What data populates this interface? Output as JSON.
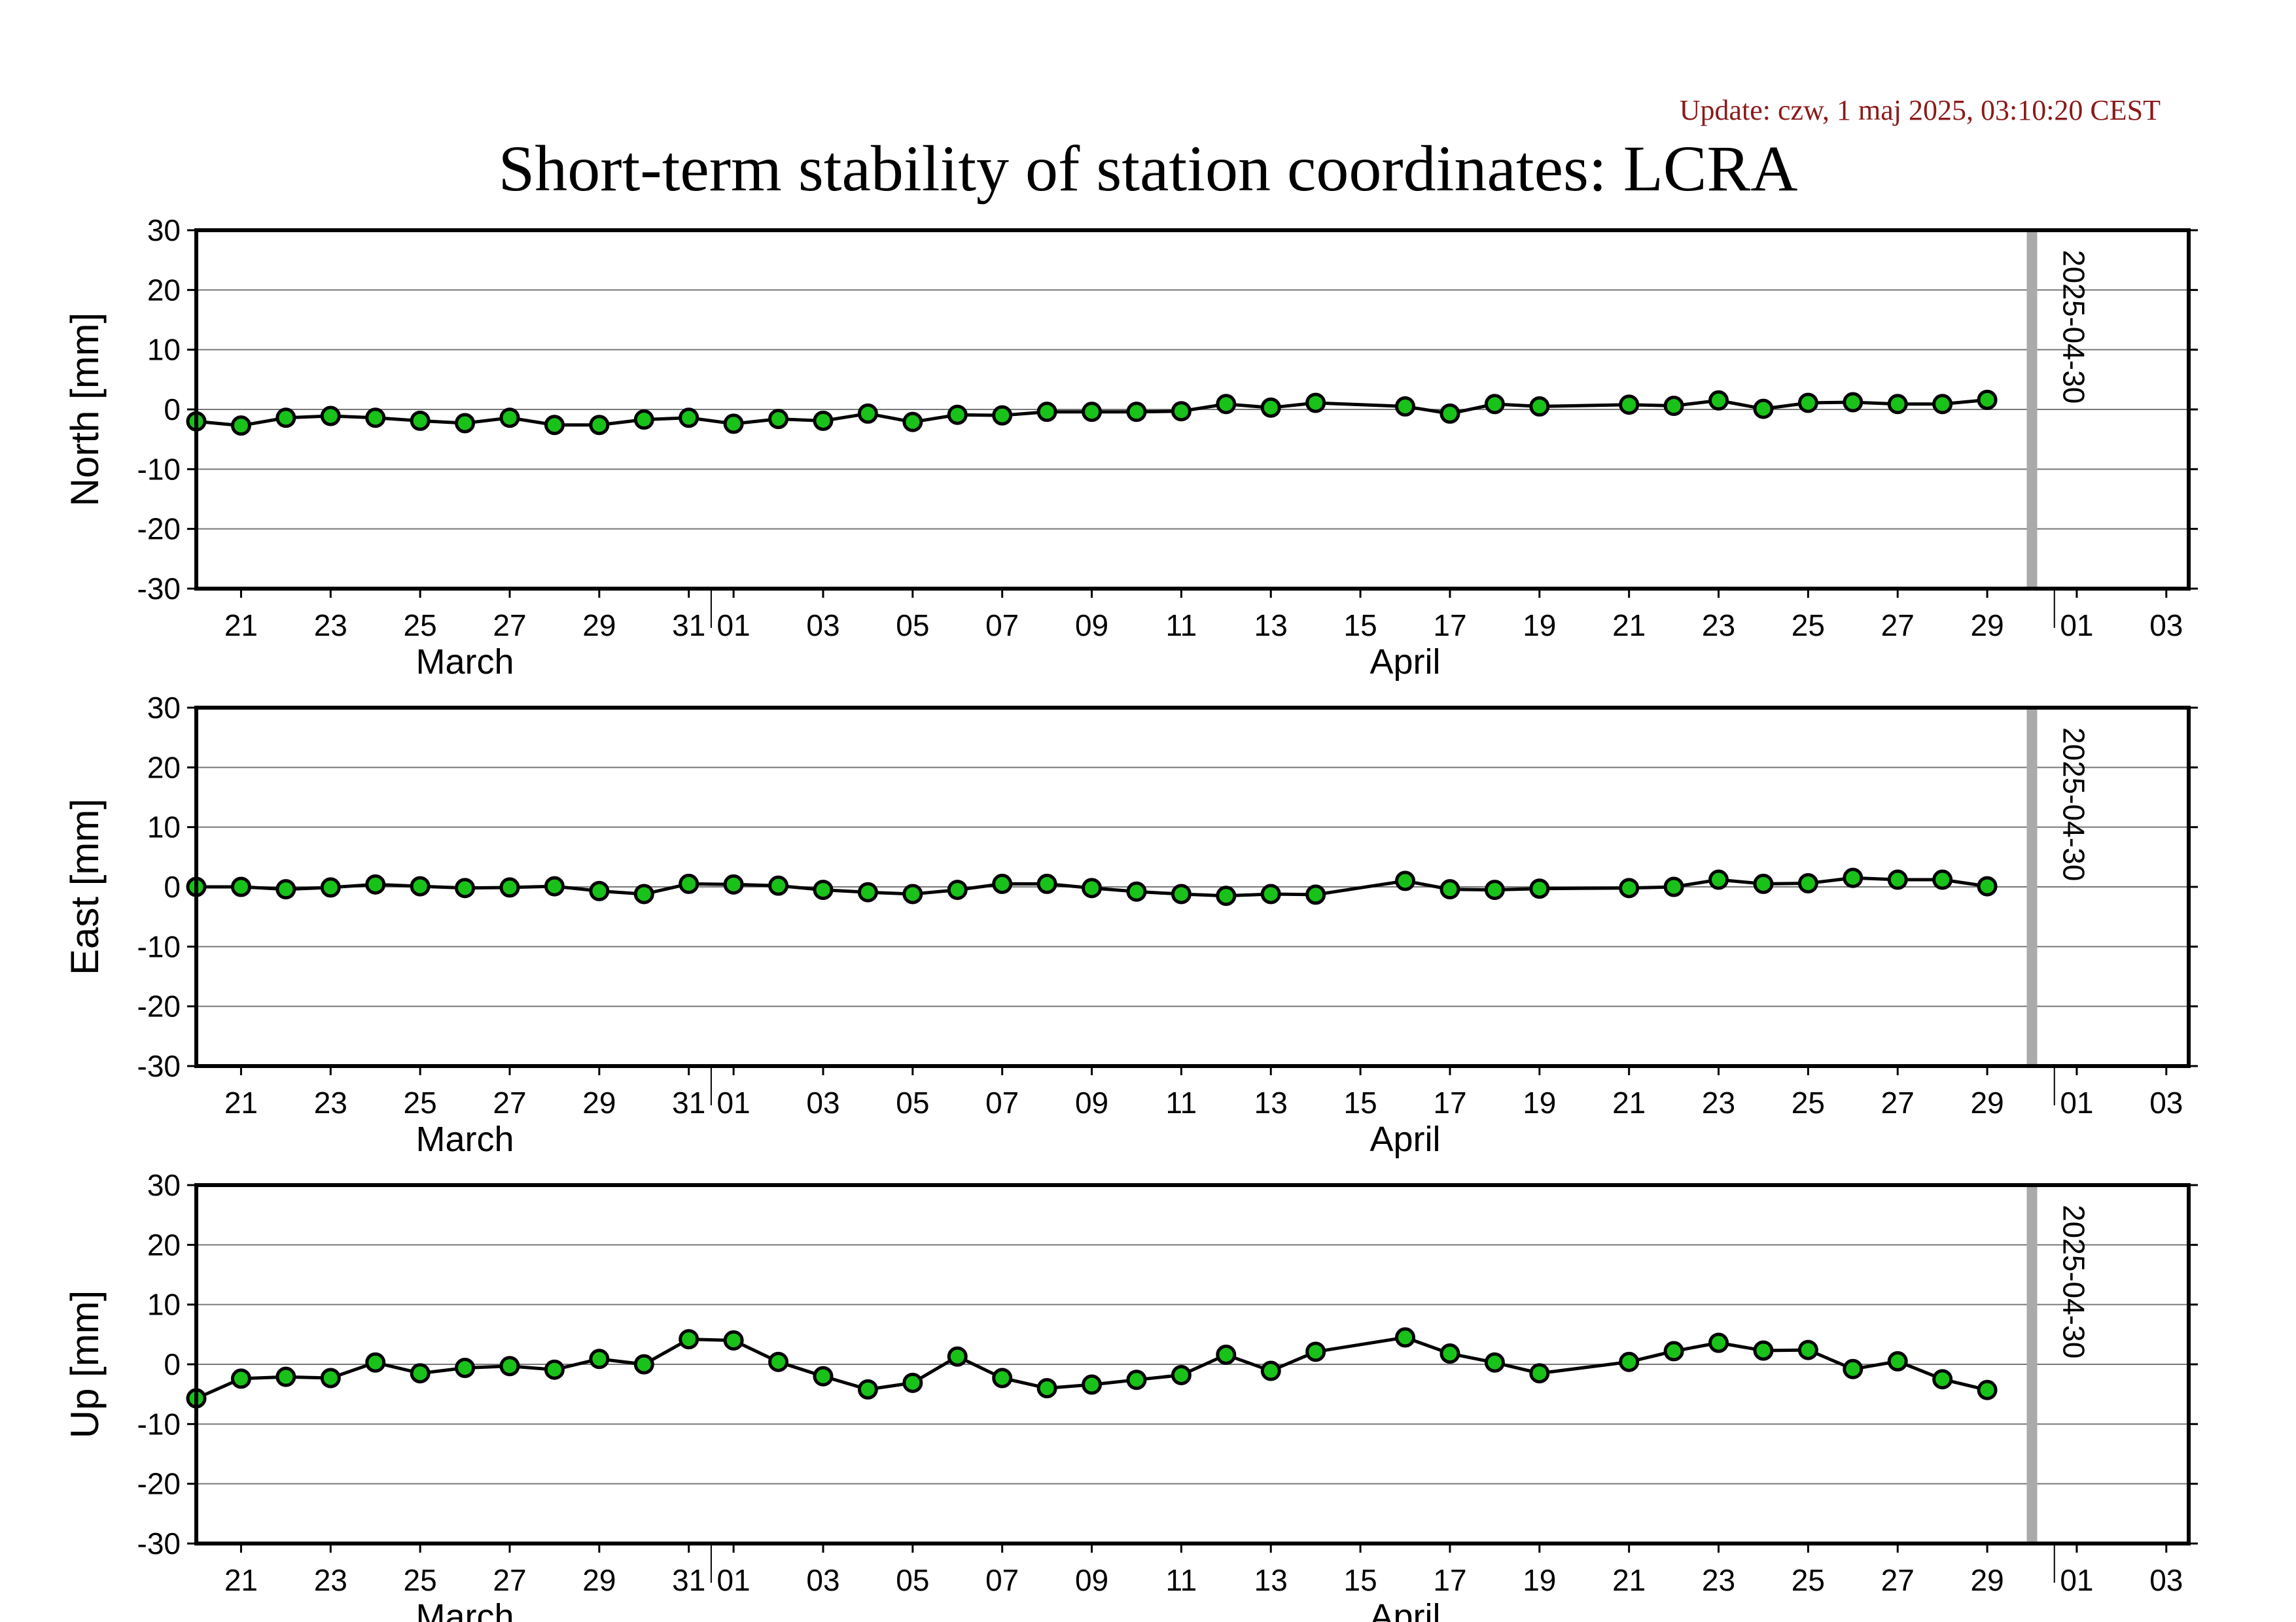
{
  "update_text": "Update: czw, 1 maj 2025, 03:10:20 CEST",
  "title": "Short-term stability of station coordinates: LCRA",
  "colors": {
    "marker_fill": "#19c219",
    "line": "#000000",
    "grid": "#777777",
    "marker_line": "#aaaaaa",
    "update_text": "#8b1a1a"
  },
  "chart_data": [
    {
      "type": "scatter",
      "ylabel": "North [mm]",
      "ylim": [
        -30,
        30
      ],
      "yticks": [
        30,
        20,
        10,
        0,
        -10,
        -20,
        -30
      ],
      "grid": true,
      "marker_label": "2025-04-30",
      "marker_date": "2025-04-30",
      "x_day_ticks": [
        {
          "label": "21",
          "date": "2025-03-21"
        },
        {
          "label": "23",
          "date": "2025-03-23"
        },
        {
          "label": "25",
          "date": "2025-03-25"
        },
        {
          "label": "27",
          "date": "2025-03-27"
        },
        {
          "label": "29",
          "date": "2025-03-29"
        },
        {
          "label": "31",
          "date": "2025-03-31"
        },
        {
          "label": "01",
          "date": "2025-04-01"
        },
        {
          "label": "03",
          "date": "2025-04-03"
        },
        {
          "label": "05",
          "date": "2025-04-05"
        },
        {
          "label": "07",
          "date": "2025-04-07"
        },
        {
          "label": "09",
          "date": "2025-04-09"
        },
        {
          "label": "11",
          "date": "2025-04-11"
        },
        {
          "label": "13",
          "date": "2025-04-13"
        },
        {
          "label": "15",
          "date": "2025-04-15"
        },
        {
          "label": "17",
          "date": "2025-04-17"
        },
        {
          "label": "19",
          "date": "2025-04-19"
        },
        {
          "label": "21",
          "date": "2025-04-21"
        },
        {
          "label": "23",
          "date": "2025-04-23"
        },
        {
          "label": "25",
          "date": "2025-04-25"
        },
        {
          "label": "27",
          "date": "2025-04-27"
        },
        {
          "label": "29",
          "date": "2025-04-29"
        },
        {
          "label": "01",
          "date": "2025-05-01"
        },
        {
          "label": "03",
          "date": "2025-05-03"
        }
      ],
      "x_month_labels": [
        {
          "label": "March",
          "date": "2025-03-26"
        },
        {
          "label": "April",
          "date": "2025-04-16"
        }
      ],
      "series": [
        {
          "x": [
            "2025-03-20",
            "2025-03-21",
            "2025-03-22",
            "2025-03-23",
            "2025-03-24",
            "2025-03-25",
            "2025-03-26",
            "2025-03-27",
            "2025-03-28",
            "2025-03-29",
            "2025-03-30",
            "2025-03-31",
            "2025-04-01",
            "2025-04-02",
            "2025-04-03",
            "2025-04-04",
            "2025-04-05",
            "2025-04-06",
            "2025-04-07",
            "2025-04-08",
            "2025-04-09",
            "2025-04-10",
            "2025-04-11",
            "2025-04-12",
            "2025-04-13",
            "2025-04-14",
            "2025-04-16",
            "2025-04-17",
            "2025-04-18",
            "2025-04-19",
            "2025-04-21",
            "2025-04-22",
            "2025-04-23",
            "2025-04-24",
            "2025-04-25",
            "2025-04-26",
            "2025-04-27",
            "2025-04-28",
            "2025-04-29"
          ],
          "y": [
            -2.0,
            -2.7,
            -1.4,
            -1.1,
            -1.4,
            -1.9,
            -2.3,
            -1.4,
            -2.6,
            -2.6,
            -1.7,
            -1.4,
            -2.4,
            -1.6,
            -1.9,
            -0.7,
            -2.1,
            -0.9,
            -1.0,
            -0.4,
            -0.4,
            -0.4,
            -0.3,
            0.9,
            0.3,
            1.1,
            0.5,
            -0.7,
            0.9,
            0.5,
            0.8,
            0.6,
            1.5,
            0.1,
            1.1,
            1.2,
            0.9,
            0.9,
            1.6
          ]
        }
      ]
    },
    {
      "type": "scatter",
      "ylabel": "East [mm]",
      "ylim": [
        -30,
        30
      ],
      "yticks": [
        30,
        20,
        10,
        0,
        -10,
        -20,
        -30
      ],
      "grid": true,
      "marker_label": "2025-04-30",
      "marker_date": "2025-04-30",
      "x_day_ticks": [
        {
          "label": "21",
          "date": "2025-03-21"
        },
        {
          "label": "23",
          "date": "2025-03-23"
        },
        {
          "label": "25",
          "date": "2025-03-25"
        },
        {
          "label": "27",
          "date": "2025-03-27"
        },
        {
          "label": "29",
          "date": "2025-03-29"
        },
        {
          "label": "31",
          "date": "2025-03-31"
        },
        {
          "label": "01",
          "date": "2025-04-01"
        },
        {
          "label": "03",
          "date": "2025-04-03"
        },
        {
          "label": "05",
          "date": "2025-04-05"
        },
        {
          "label": "07",
          "date": "2025-04-07"
        },
        {
          "label": "09",
          "date": "2025-04-09"
        },
        {
          "label": "11",
          "date": "2025-04-11"
        },
        {
          "label": "13",
          "date": "2025-04-13"
        },
        {
          "label": "15",
          "date": "2025-04-15"
        },
        {
          "label": "17",
          "date": "2025-04-17"
        },
        {
          "label": "19",
          "date": "2025-04-19"
        },
        {
          "label": "21",
          "date": "2025-04-21"
        },
        {
          "label": "23",
          "date": "2025-04-23"
        },
        {
          "label": "25",
          "date": "2025-04-25"
        },
        {
          "label": "27",
          "date": "2025-04-27"
        },
        {
          "label": "29",
          "date": "2025-04-29"
        },
        {
          "label": "01",
          "date": "2025-05-01"
        },
        {
          "label": "03",
          "date": "2025-05-03"
        }
      ],
      "x_month_labels": [
        {
          "label": "March",
          "date": "2025-03-26"
        },
        {
          "label": "April",
          "date": "2025-04-16"
        }
      ],
      "series": [
        {
          "x": [
            "2025-03-20",
            "2025-03-21",
            "2025-03-22",
            "2025-03-23",
            "2025-03-24",
            "2025-03-25",
            "2025-03-26",
            "2025-03-27",
            "2025-03-28",
            "2025-03-29",
            "2025-03-30",
            "2025-03-31",
            "2025-04-01",
            "2025-04-02",
            "2025-04-03",
            "2025-04-04",
            "2025-04-05",
            "2025-04-06",
            "2025-04-07",
            "2025-04-08",
            "2025-04-09",
            "2025-04-10",
            "2025-04-11",
            "2025-04-12",
            "2025-04-13",
            "2025-04-14",
            "2025-04-16",
            "2025-04-17",
            "2025-04-18",
            "2025-04-19",
            "2025-04-21",
            "2025-04-22",
            "2025-04-23",
            "2025-04-24",
            "2025-04-25",
            "2025-04-26",
            "2025-04-27",
            "2025-04-28",
            "2025-04-29"
          ],
          "y": [
            0.0,
            0.0,
            -0.4,
            -0.1,
            0.4,
            0.1,
            -0.2,
            -0.1,
            0.1,
            -0.7,
            -1.2,
            0.5,
            0.4,
            0.2,
            -0.5,
            -0.9,
            -1.2,
            -0.5,
            0.5,
            0.5,
            -0.2,
            -0.8,
            -1.2,
            -1.5,
            -1.2,
            -1.3,
            1.0,
            -0.4,
            -0.5,
            -0.3,
            -0.2,
            0.0,
            1.2,
            0.5,
            0.6,
            1.5,
            1.2,
            1.2,
            0.1
          ]
        }
      ]
    },
    {
      "type": "scatter",
      "ylabel": "Up [mm]",
      "ylim": [
        -30,
        30
      ],
      "yticks": [
        30,
        20,
        10,
        0,
        -10,
        -20,
        -30
      ],
      "grid": true,
      "marker_label": "2025-04-30",
      "marker_date": "2025-04-30",
      "x_day_ticks": [
        {
          "label": "21",
          "date": "2025-03-21"
        },
        {
          "label": "23",
          "date": "2025-03-23"
        },
        {
          "label": "25",
          "date": "2025-03-25"
        },
        {
          "label": "27",
          "date": "2025-03-27"
        },
        {
          "label": "29",
          "date": "2025-03-29"
        },
        {
          "label": "31",
          "date": "2025-03-31"
        },
        {
          "label": "01",
          "date": "2025-04-01"
        },
        {
          "label": "03",
          "date": "2025-04-03"
        },
        {
          "label": "05",
          "date": "2025-04-05"
        },
        {
          "label": "07",
          "date": "2025-04-07"
        },
        {
          "label": "09",
          "date": "2025-04-09"
        },
        {
          "label": "11",
          "date": "2025-04-11"
        },
        {
          "label": "13",
          "date": "2025-04-13"
        },
        {
          "label": "15",
          "date": "2025-04-15"
        },
        {
          "label": "17",
          "date": "2025-04-17"
        },
        {
          "label": "19",
          "date": "2025-04-19"
        },
        {
          "label": "21",
          "date": "2025-04-21"
        },
        {
          "label": "23",
          "date": "2025-04-23"
        },
        {
          "label": "25",
          "date": "2025-04-25"
        },
        {
          "label": "27",
          "date": "2025-04-27"
        },
        {
          "label": "29",
          "date": "2025-04-29"
        },
        {
          "label": "01",
          "date": "2025-05-01"
        },
        {
          "label": "03",
          "date": "2025-05-03"
        }
      ],
      "x_month_labels": [
        {
          "label": "March",
          "date": "2025-03-26"
        },
        {
          "label": "April",
          "date": "2025-04-16"
        }
      ],
      "series": [
        {
          "x": [
            "2025-03-20",
            "2025-03-21",
            "2025-03-22",
            "2025-03-23",
            "2025-03-24",
            "2025-03-25",
            "2025-03-26",
            "2025-03-27",
            "2025-03-28",
            "2025-03-29",
            "2025-03-30",
            "2025-03-31",
            "2025-04-01",
            "2025-04-02",
            "2025-04-03",
            "2025-04-04",
            "2025-04-05",
            "2025-04-06",
            "2025-04-07",
            "2025-04-08",
            "2025-04-09",
            "2025-04-10",
            "2025-04-11",
            "2025-04-12",
            "2025-04-13",
            "2025-04-14",
            "2025-04-16",
            "2025-04-17",
            "2025-04-18",
            "2025-04-19",
            "2025-04-21",
            "2025-04-22",
            "2025-04-23",
            "2025-04-24",
            "2025-04-25",
            "2025-04-26",
            "2025-04-27",
            "2025-04-28",
            "2025-04-29"
          ],
          "y": [
            -5.7,
            -2.4,
            -2.1,
            -2.3,
            0.3,
            -1.5,
            -0.6,
            -0.3,
            -0.9,
            0.9,
            0.0,
            4.2,
            4.0,
            0.4,
            -2.0,
            -4.2,
            -3.1,
            1.3,
            -2.3,
            -4.0,
            -3.4,
            -2.6,
            -1.8,
            1.6,
            -1.1,
            2.1,
            4.5,
            1.8,
            0.3,
            -1.5,
            0.4,
            2.2,
            3.6,
            2.3,
            2.4,
            -0.8,
            0.5,
            -2.5,
            -4.3
          ]
        }
      ]
    }
  ]
}
